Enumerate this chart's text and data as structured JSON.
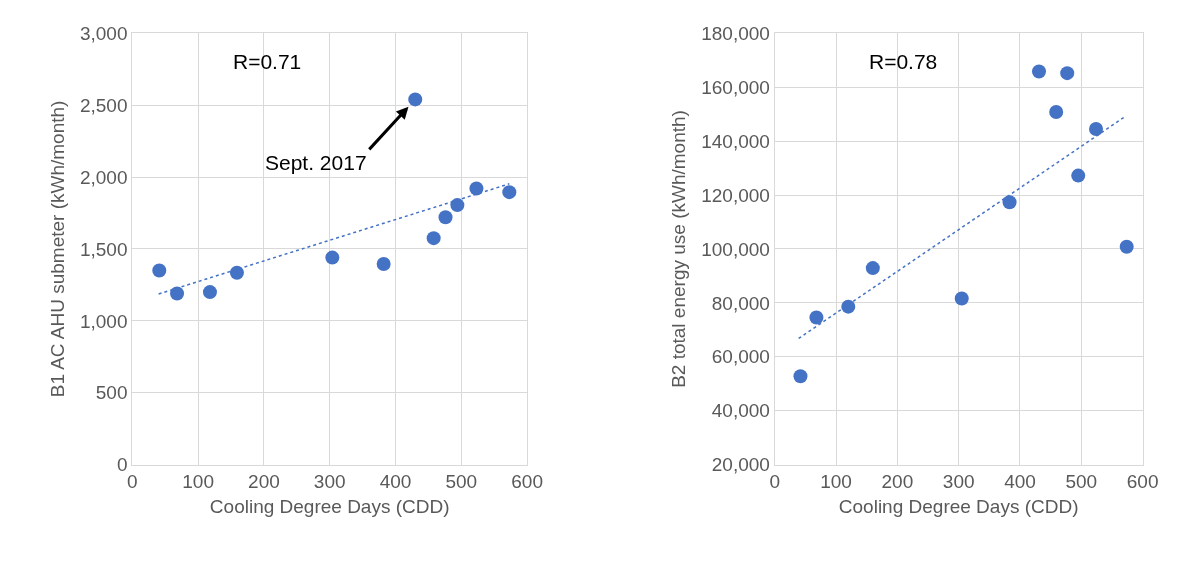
{
  "chart_data": [
    {
      "type": "scatter",
      "xlabel": "Cooling Degree Days (CDD)",
      "ylabel": "B1 AC AHU submeter (kWh/month)",
      "xlim": [
        0,
        600
      ],
      "xticks": [
        0,
        100,
        200,
        300,
        400,
        500,
        600
      ],
      "ylim": [
        0,
        3000
      ],
      "yticks": [
        0,
        500,
        {
          "value": 1000,
          "label": "1,000"
        },
        {
          "value": 1500,
          "label": "1,500"
        },
        {
          "value": 2000,
          "label": "2,000"
        },
        {
          "value": 2500,
          "label": "2,500"
        },
        {
          "value": 3000,
          "label": "3,000"
        }
      ],
      "grid": true,
      "series": [
        {
          "marker": "circle",
          "color": "#4472c4",
          "x": [
            41,
            68,
            118,
            159,
            304,
            382,
            430,
            458,
            476,
            494,
            523,
            573
          ],
          "values": [
            1350,
            1190,
            1200,
            1335,
            1440,
            1395,
            2540,
            1575,
            1720,
            1805,
            1920,
            1895
          ]
        },
        {
          "type": "line",
          "marker": "none",
          "line_style": "dotted",
          "color": "#4472c4",
          "x": [
            40,
            573
          ],
          "values": [
            1187,
            1953
          ]
        }
      ],
      "annotations": [
        "R=0.71",
        {
          "text": "Sept. 2017",
          "x": 430,
          "y": 2540
        }
      ]
    },
    {
      "type": "scatter",
      "xlabel": "Cooling Degree Days (CDD)",
      "ylabel": "B2 total energy use (kWh/month)",
      "xlim": [
        0,
        600
      ],
      "xticks": [
        0,
        100,
        200,
        300,
        400,
        500,
        600
      ],
      "ylim": [
        20000,
        180000
      ],
      "yticks": [
        {
          "value": 20000,
          "label": "20,000"
        },
        {
          "value": 40000,
          "label": "40,000"
        },
        {
          "value": 60000,
          "label": "60,000"
        },
        {
          "value": 80000,
          "label": "80,000"
        },
        {
          "value": 100000,
          "label": "100,000"
        },
        {
          "value": 120000,
          "label": "120,000"
        },
        {
          "value": 140000,
          "label": "140,000"
        },
        {
          "value": 160000,
          "label": "160,000"
        },
        {
          "value": 180000,
          "label": "180,000"
        }
      ],
      "grid": true,
      "series": [
        {
          "marker": "circle",
          "color": "#4472c4",
          "x": [
            42,
            68,
            120,
            160,
            305,
            383,
            431,
            459,
            477,
            495,
            524,
            574
          ],
          "values": [
            52800,
            74600,
            78600,
            92900,
            81600,
            117300,
            165800,
            150800,
            165200,
            127200,
            144500,
            100800
          ]
        },
        {
          "type": "line",
          "marker": "none",
          "line_style": "dotted",
          "color": "#4472c4",
          "x": [
            39,
            572
          ],
          "values": [
            66800,
            149200
          ]
        }
      ],
      "annotations": [
        "R=0.78"
      ]
    }
  ]
}
